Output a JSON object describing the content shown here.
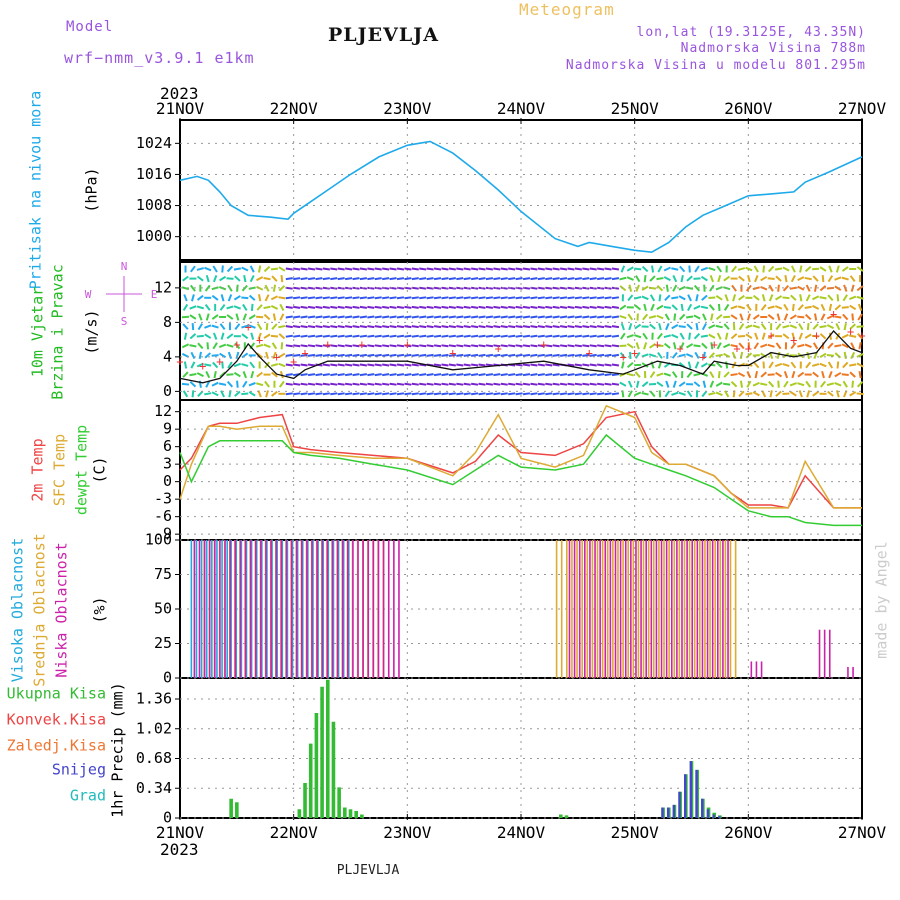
{
  "header": {
    "model_label": "Model",
    "model_name": "wrf−nmm_v3.9.1  e1km",
    "title": "PLJEVLJA",
    "meteogram": "Meteogram",
    "lonlat": "lon,lat (19.3125E, 43.35N)",
    "elevation": "Nadmorska Visina 788m",
    "model_elevation": "Nadmorska Visina u modelu 801.295m"
  },
  "footer": {
    "station": "PLJEVLJA",
    "watermark": "made by Angel"
  },
  "colors": {
    "pressure": "#1eaaea",
    "wind_label": "#22bb22",
    "temp2m": "#ee4444",
    "sfc": "#ddaa33",
    "dewpt": "#33cc33",
    "high_cloud": "#22aadd",
    "mid_cloud": "#ddaa33",
    "low_cloud": "#cc22aa",
    "total_precip": "#33bb33",
    "conv_precip": "#ee4444",
    "freezing": "#ee7733",
    "snow": "#4444cc",
    "hail": "#22bbbb",
    "compass": "#cc55dd"
  },
  "chart_data": [
    {
      "type": "line",
      "panel": "pressure",
      "ylabel": "Pritisak na nivou mora",
      "unit": "(hPa)",
      "yticks": [
        "1024",
        "1016",
        "1008",
        "1000"
      ],
      "ylim": [
        994,
        1030
      ],
      "x_labels": [
        "21NOV",
        "22NOV",
        "23NOV",
        "24NOV",
        "25NOV",
        "26NOV",
        "27NOV"
      ],
      "year_label": "2023",
      "x": [
        0,
        0.15,
        0.25,
        0.35,
        0.45,
        0.6,
        0.8,
        0.95,
        1.0,
        1.15,
        1.3,
        1.5,
        1.75,
        2.0,
        2.2,
        2.4,
        2.6,
        2.8,
        3.0,
        3.3,
        3.5,
        3.6,
        3.8,
        4.0,
        4.15,
        4.3,
        4.45,
        4.6,
        4.8,
        5.0,
        5.2,
        5.4,
        5.5,
        5.7,
        6.0
      ],
      "series": [
        {
          "values": [
            1014.5,
            1015.5,
            1014.5,
            1011.5,
            1008,
            1005.5,
            1005,
            1004.5,
            1006,
            1009,
            1012,
            1016,
            1020.5,
            1023.5,
            1024.5,
            1021.5,
            1017,
            1012,
            1006.5,
            999.5,
            997.5,
            998.5,
            997.5,
            996.5,
            996,
            998.5,
            1002.5,
            1005.5,
            1008,
            1010.5,
            1011,
            1011.5,
            1014,
            1016.5,
            1020.5
          ]
        }
      ]
    },
    {
      "type": "line",
      "panel": "wind",
      "ylabel_lines": [
        "10m Vjetar",
        "Brzina i Pravac"
      ],
      "unit": "(m/s)",
      "yticks": [
        "12",
        "8",
        "4",
        "0"
      ],
      "ylim": [
        -1,
        15
      ],
      "compass": {
        "n": "N",
        "s": "S",
        "e": "E",
        "w": "W"
      },
      "x": [
        0,
        0.2,
        0.35,
        0.5,
        0.6,
        0.7,
        0.85,
        1.0,
        1.1,
        1.3,
        1.6,
        2.0,
        2.4,
        2.8,
        3.2,
        3.6,
        3.9,
        4.0,
        4.2,
        4.4,
        4.6,
        4.7,
        4.9,
        5.0,
        5.2,
        5.4,
        5.6,
        5.75,
        5.9,
        6.0
      ],
      "series": [
        {
          "values": [
            1.5,
            1.0,
            1.5,
            3.5,
            5.5,
            4.0,
            2.0,
            1.5,
            2.5,
            3.5,
            3.5,
            3.5,
            2.5,
            3.0,
            3.5,
            2.5,
            2.0,
            2.5,
            3.5,
            3.0,
            2.0,
            3.5,
            3.0,
            3.0,
            4.5,
            4.0,
            4.5,
            7.0,
            5.0,
            4.5
          ]
        }
      ]
    },
    {
      "type": "line",
      "panel": "temperature",
      "ylabel_lines": [
        "2m Temp",
        "SFC Temp",
        "dewpt Temp"
      ],
      "unit": "(C)",
      "yticks": [
        "12",
        "9",
        "6",
        "3",
        "0",
        "-3",
        "-6",
        "-9"
      ],
      "ylim": [
        -10,
        14
      ],
      "x": [
        0,
        0.1,
        0.25,
        0.35,
        0.5,
        0.7,
        0.9,
        1.0,
        1.15,
        1.4,
        1.7,
        2.0,
        2.4,
        2.6,
        2.8,
        3.0,
        3.3,
        3.55,
        3.75,
        4.0,
        4.15,
        4.3,
        4.45,
        4.7,
        4.85,
        5.0,
        5.2,
        5.35,
        5.5,
        5.75,
        6.0
      ],
      "series": [
        {
          "name": "2m Temp",
          "values": [
            2,
            4,
            9.5,
            10,
            10,
            11,
            11.5,
            6,
            5.5,
            5,
            4.5,
            4,
            1.5,
            3.5,
            8,
            5,
            4.5,
            6.5,
            11,
            12,
            6,
            3,
            3,
            1,
            -2,
            -4,
            -4,
            -4.5,
            1,
            -4.5,
            -4.5
          ]
        },
        {
          "name": "SFC Temp",
          "values": [
            -3,
            3,
            9.5,
            9.5,
            9,
            9.5,
            9.5,
            5,
            5,
            4.5,
            4,
            4,
            1,
            5,
            11.5,
            4,
            2.5,
            4.5,
            13,
            11,
            5,
            3,
            3,
            1,
            -2,
            -4.5,
            -4.5,
            -4.5,
            3.5,
            -4.5,
            -4.5
          ]
        },
        {
          "name": "dewpt Temp",
          "values": [
            5,
            0,
            6,
            7,
            7,
            7,
            7,
            5,
            4.5,
            4,
            3,
            2,
            -0.5,
            2,
            4.5,
            2.5,
            2,
            3,
            8,
            4,
            3,
            2,
            1,
            -1,
            -3,
            -5,
            -6,
            -6,
            -7,
            -7.5,
            -7.5
          ]
        }
      ]
    },
    {
      "type": "bar",
      "panel": "clouds",
      "ylabel_lines": [
        "Visoka Oblacnost",
        "Srednja Oblacnost",
        "Niska Oblacnost"
      ],
      "unit": "(%)",
      "yticks": [
        "100",
        "75",
        "50",
        "25",
        "0"
      ],
      "ylim": [
        0,
        100
      ],
      "series": [
        {
          "name": "Visoka Oblacnost",
          "ranges": [
            [
              0.1,
              0.45,
              100
            ],
            [
              0.45,
              1.5,
              100
            ]
          ]
        },
        {
          "name": "Srednja Oblacnost",
          "ranges": [
            [
              0.2,
              1.8,
              100
            ],
            [
              3.3,
              4.9,
              100
            ]
          ]
        },
        {
          "name": "Niska Oblacnost",
          "ranges": [
            [
              0.1,
              1.9,
              100
            ],
            [
              3.4,
              4.8,
              100
            ],
            [
              5.0,
              5.1,
              12
            ],
            [
              5.6,
              5.7,
              35
            ],
            [
              5.85,
              5.9,
              8
            ]
          ]
        }
      ]
    },
    {
      "type": "bar",
      "panel": "precip",
      "ylabel": "1hr Precip (mm)",
      "legend": [
        "Ukupna Kisa",
        "Konvek.Kisa",
        "Zaledj.Kisa",
        "Snijeg",
        "Grad"
      ],
      "yticks": [
        "1.36",
        "1.02",
        "0.68",
        "0.34",
        "0"
      ],
      "ylim": [
        0,
        1.6
      ],
      "x": [
        0.45,
        0.5,
        1.05,
        1.1,
        1.15,
        1.2,
        1.25,
        1.3,
        1.35,
        1.4,
        1.45,
        1.5,
        1.55,
        1.6,
        3.35,
        3.4,
        4.25,
        4.3,
        4.35,
        4.4,
        4.45,
        4.5,
        4.55,
        4.6,
        4.65,
        4.7,
        4.75
      ],
      "series": [
        {
          "name": "Ukupna Kisa",
          "values": [
            0.22,
            0.18,
            0.1,
            0.4,
            0.85,
            1.2,
            1.5,
            1.58,
            1.1,
            0.35,
            0.12,
            0.1,
            0.08,
            0.04,
            0.04,
            0.03,
            0.12,
            0.12,
            0.15,
            0.3,
            0.5,
            0.65,
            0.55,
            0.22,
            0.12,
            0.06,
            0.03
          ]
        },
        {
          "name": "Snijeg",
          "values": [
            0,
            0,
            0,
            0,
            0,
            0,
            0,
            0,
            0,
            0,
            0,
            0,
            0,
            0,
            0,
            0,
            0.12,
            0.12,
            0.15,
            0.3,
            0.5,
            0.65,
            0.55,
            0.22,
            0.1,
            0.04,
            0.02
          ]
        }
      ]
    }
  ]
}
